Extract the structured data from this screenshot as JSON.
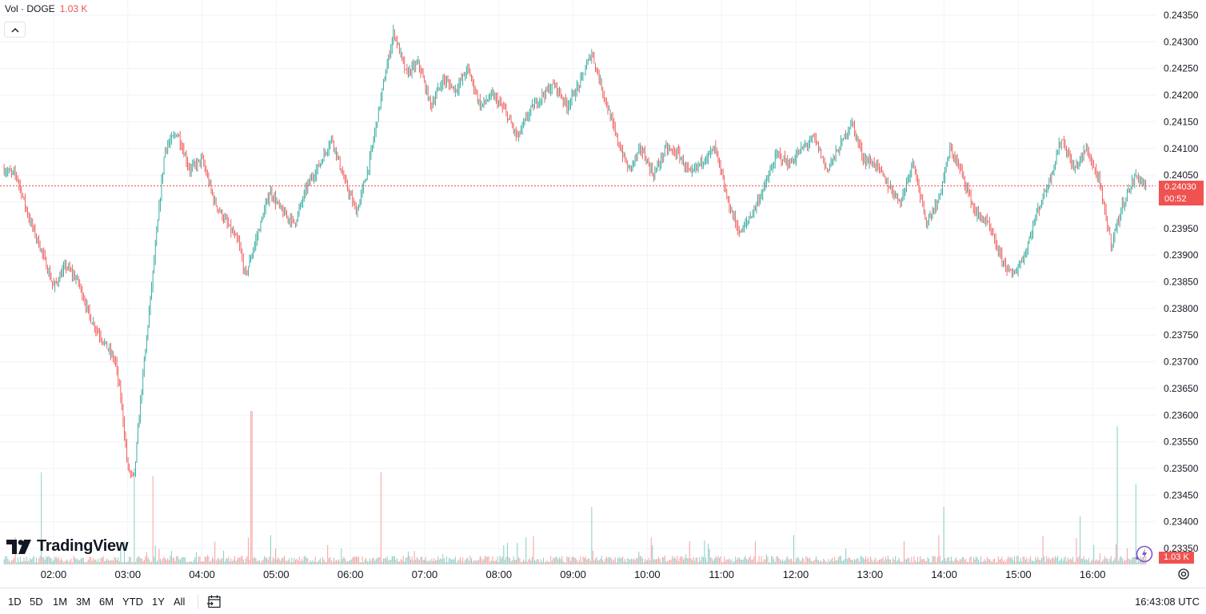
{
  "legend": {
    "label": "Vol · DOGE",
    "value": "1.03 K"
  },
  "brand": {
    "name": "TradingView"
  },
  "price_label": {
    "price": "0.24030",
    "countdown": "00:52"
  },
  "volume_label": "1.03 K",
  "ranges": [
    "1D",
    "5D",
    "1M",
    "3M",
    "6M",
    "YTD",
    "1Y",
    "All"
  ],
  "clock": "16:43:08 UTC",
  "colors": {
    "up": "#26a69a",
    "down": "#ef5350",
    "grid": "#f0f3fa",
    "price_line": "#ef5350"
  },
  "icons": [
    "chevron-up-icon",
    "calendar-goto-icon",
    "assistant-spark-icon",
    "settings-icon"
  ],
  "chart_data": {
    "type": "candlestick",
    "title": "",
    "symbol": "DOGE",
    "x_ticks": [
      "02:00",
      "03:00",
      "04:00",
      "05:00",
      "06:00",
      "07:00",
      "08:00",
      "09:00",
      "10:00",
      "11:00",
      "12:00",
      "13:00",
      "14:00",
      "15:00",
      "16:00"
    ],
    "y_ticks": [
      "0.24350",
      "0.24300",
      "0.24250",
      "0.24200",
      "0.24150",
      "0.24100",
      "0.24050",
      "0.24000",
      "0.23950",
      "0.23900",
      "0.23850",
      "0.23800",
      "0.23750",
      "0.23700",
      "0.23650",
      "0.23600",
      "0.23550",
      "0.23500",
      "0.23450",
      "0.23400",
      "0.23350"
    ],
    "ylim": [
      0.2335,
      0.2436
    ],
    "last_price": 0.2403,
    "price_path": [
      [
        "01:20",
        0.2406
      ],
      [
        "01:30",
        0.2405
      ],
      [
        "01:40",
        0.2397
      ],
      [
        "01:50",
        0.2391
      ],
      [
        "02:00",
        0.2384
      ],
      [
        "02:10",
        0.2388
      ],
      [
        "02:20",
        0.2385
      ],
      [
        "02:30",
        0.2378
      ],
      [
        "02:40",
        0.2374
      ],
      [
        "02:50",
        0.237
      ],
      [
        "02:55",
        0.2362
      ],
      [
        "03:00",
        0.235
      ],
      [
        "03:05",
        0.2348
      ],
      [
        "03:10",
        0.2362
      ],
      [
        "03:20",
        0.2386
      ],
      [
        "03:30",
        0.241
      ],
      [
        "03:40",
        0.2413
      ],
      [
        "03:50",
        0.2406
      ],
      [
        "04:00",
        0.2408
      ],
      [
        "04:10",
        0.24
      ],
      [
        "04:20",
        0.2396
      ],
      [
        "04:30",
        0.2392
      ],
      [
        "04:35",
        0.2386
      ],
      [
        "04:45",
        0.2394
      ],
      [
        "04:55",
        0.2402
      ],
      [
        "05:05",
        0.2398
      ],
      [
        "05:15",
        0.2396
      ],
      [
        "05:25",
        0.2403
      ],
      [
        "05:35",
        0.2407
      ],
      [
        "05:45",
        0.2412
      ],
      [
        "05:55",
        0.2404
      ],
      [
        "06:05",
        0.2398
      ],
      [
        "06:15",
        0.2407
      ],
      [
        "06:25",
        0.242
      ],
      [
        "06:35",
        0.2432
      ],
      [
        "06:45",
        0.2424
      ],
      [
        "06:55",
        0.2426
      ],
      [
        "07:05",
        0.2418
      ],
      [
        "07:15",
        0.2423
      ],
      [
        "07:25",
        0.2421
      ],
      [
        "07:35",
        0.2425
      ],
      [
        "07:45",
        0.2418
      ],
      [
        "07:55",
        0.242
      ],
      [
        "08:05",
        0.2417
      ],
      [
        "08:15",
        0.2412
      ],
      [
        "08:25",
        0.2417
      ],
      [
        "08:35",
        0.242
      ],
      [
        "08:45",
        0.2422
      ],
      [
        "08:55",
        0.2418
      ],
      [
        "09:05",
        0.2422
      ],
      [
        "09:15",
        0.2428
      ],
      [
        "09:25",
        0.242
      ],
      [
        "09:35",
        0.2412
      ],
      [
        "09:45",
        0.2406
      ],
      [
        "09:55",
        0.241
      ],
      [
        "10:05",
        0.2405
      ],
      [
        "10:15",
        0.241
      ],
      [
        "10:25",
        0.2409
      ],
      [
        "10:35",
        0.2405
      ],
      [
        "10:45",
        0.2408
      ],
      [
        "10:55",
        0.241
      ],
      [
        "11:05",
        0.24
      ],
      [
        "11:15",
        0.2394
      ],
      [
        "11:25",
        0.2398
      ],
      [
        "11:35",
        0.2403
      ],
      [
        "11:45",
        0.2409
      ],
      [
        "11:55",
        0.2407
      ],
      [
        "12:05",
        0.241
      ],
      [
        "12:15",
        0.2412
      ],
      [
        "12:25",
        0.2406
      ],
      [
        "12:35",
        0.241
      ],
      [
        "12:45",
        0.2415
      ],
      [
        "12:55",
        0.2408
      ],
      [
        "13:05",
        0.2407
      ],
      [
        "13:15",
        0.2403
      ],
      [
        "13:25",
        0.24
      ],
      [
        "13:35",
        0.2408
      ],
      [
        "13:45",
        0.2396
      ],
      [
        "13:55",
        0.24
      ],
      [
        "14:05",
        0.241
      ],
      [
        "14:15",
        0.2405
      ],
      [
        "14:25",
        0.2398
      ],
      [
        "14:35",
        0.2396
      ],
      [
        "14:45",
        0.239
      ],
      [
        "14:55",
        0.2386
      ],
      [
        "15:05",
        0.239
      ],
      [
        "15:15",
        0.2398
      ],
      [
        "15:25",
        0.2404
      ],
      [
        "15:35",
        0.2412
      ],
      [
        "15:45",
        0.2406
      ],
      [
        "15:55",
        0.241
      ],
      [
        "16:05",
        0.2404
      ],
      [
        "16:15",
        0.2392
      ],
      [
        "16:25",
        0.24
      ],
      [
        "16:35",
        0.2405
      ],
      [
        "16:43",
        0.2403
      ]
    ],
    "volume_spikes": [
      [
        "04:40",
        0.8
      ],
      [
        "16:20",
        0.72
      ],
      [
        "06:25",
        0.48
      ],
      [
        "03:05",
        0.5
      ],
      [
        "16:35",
        0.42
      ],
      [
        "03:20",
        0.46
      ],
      [
        "01:50",
        0.48
      ],
      [
        "14:00",
        0.3
      ],
      [
        "15:50",
        0.25
      ],
      [
        "09:15",
        0.3
      ]
    ]
  }
}
